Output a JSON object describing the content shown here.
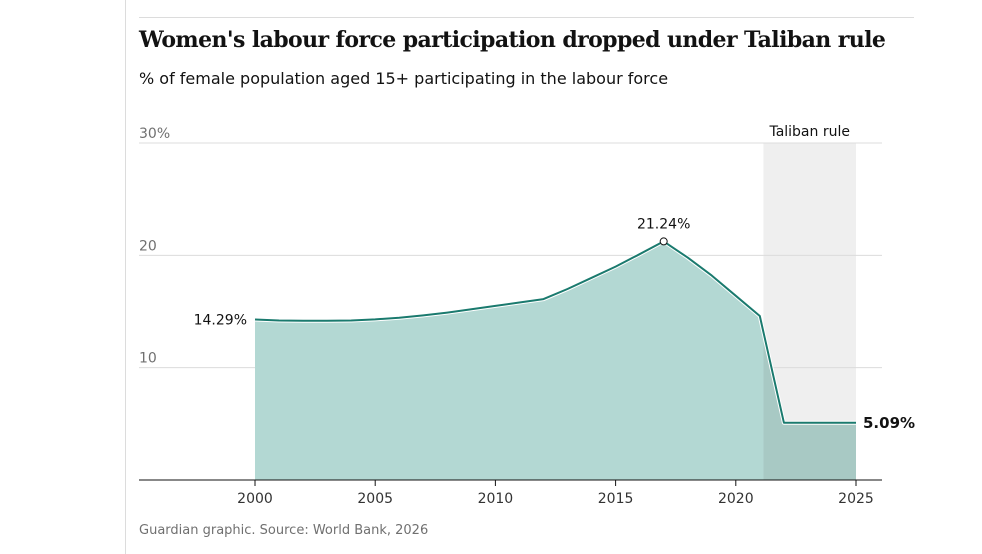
{
  "header": {
    "title": "Women's labour force participation dropped under Taliban rule",
    "subtitle": "% of female population aged 15+ participating in the labour force"
  },
  "footer": {
    "source": "Guardian graphic. Source: World Bank, 2026"
  },
  "colors": {
    "line": "#1a7a6e",
    "area": "#b3d8d3",
    "area_shaded": "#a8c9c4",
    "region": "#efefef",
    "gridline": "#dcdcdc",
    "axis": "#121212"
  },
  "chart_data": {
    "type": "area",
    "title": "Women's labour force participation dropped under Taliban rule",
    "subtitle": "% of female population aged 15+ participating in the labour force",
    "xlabel": "",
    "ylabel": "",
    "xlim": [
      1995,
      2026
    ],
    "ylim": [
      0,
      30
    ],
    "grid": true,
    "x_ticks": [
      2000,
      2005,
      2010,
      2015,
      2020,
      2025
    ],
    "x_tick_labels": [
      "2000",
      "2005",
      "2010",
      "2015",
      "2020",
      "2025"
    ],
    "y_ticks": [
      0,
      10,
      20,
      30
    ],
    "y_tick_labels": [
      "",
      "10",
      "20",
      "30%"
    ],
    "series": [
      {
        "x": [
          2000,
          2001,
          2002,
          2003,
          2004,
          2005,
          2006,
          2007,
          2008,
          2009,
          2010,
          2011,
          2012,
          2013,
          2014,
          2015,
          2016,
          2017,
          2018,
          2019,
          2020,
          2021,
          2022,
          2023,
          2024,
          2025
        ],
        "values": [
          14.29,
          14.2,
          14.18,
          14.18,
          14.2,
          14.3,
          14.45,
          14.65,
          14.9,
          15.2,
          15.5,
          15.8,
          16.1,
          17.0,
          18.0,
          19.0,
          20.1,
          21.24,
          19.8,
          18.2,
          16.4,
          14.6,
          5.1,
          5.1,
          5.09,
          5.09
        ]
      }
    ],
    "shaded_region": {
      "from": 2021.15,
      "to": 2025,
      "label": "Taliban rule"
    },
    "annotations": [
      {
        "x": 2000,
        "y": 14.29,
        "text": "14.29%"
      },
      {
        "x": 2017,
        "y": 21.24,
        "text": "21.24%"
      },
      {
        "x": 2025,
        "y": 5.09,
        "text": "5.09%"
      }
    ]
  }
}
